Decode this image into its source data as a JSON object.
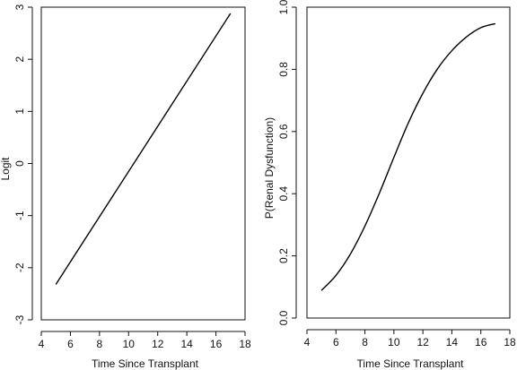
{
  "chart_data": [
    {
      "type": "line",
      "xlabel": "Time Since Transplant",
      "ylabel": "Logit",
      "xlim": [
        4,
        18
      ],
      "ylim": [
        -3,
        3
      ],
      "xticks": [
        4,
        6,
        8,
        10,
        12,
        14,
        16,
        18
      ],
      "yticks": [
        -3,
        -2,
        -1,
        0,
        1,
        2,
        3
      ],
      "ytick_labels": [
        "-3",
        "-2",
        "-1",
        "0",
        "1",
        "2",
        "3"
      ],
      "series": [
        {
          "x": [
            5,
            17
          ],
          "y": [
            -2.32,
            2.88
          ]
        }
      ]
    },
    {
      "type": "line",
      "xlabel": "Time Since Transplant",
      "ylabel": "P(Renal Dysfunction)",
      "xlim": [
        4,
        18
      ],
      "ylim": [
        0,
        1
      ],
      "xticks": [
        4,
        6,
        8,
        10,
        12,
        14,
        16,
        18
      ],
      "yticks": [
        0,
        0.2,
        0.4,
        0.6,
        0.8,
        1.0
      ],
      "ytick_labels": [
        "0.0",
        "0.2",
        "0.4",
        "0.6",
        "0.8",
        "1.0"
      ],
      "series": [
        {
          "x": [
            5,
            6,
            7,
            8,
            9,
            10,
            11,
            12,
            13,
            14,
            15,
            16,
            17
          ],
          "y": [
            0.089,
            0.137,
            0.206,
            0.296,
            0.402,
            0.517,
            0.628,
            0.723,
            0.801,
            0.86,
            0.904,
            0.934,
            0.947
          ]
        }
      ]
    }
  ]
}
